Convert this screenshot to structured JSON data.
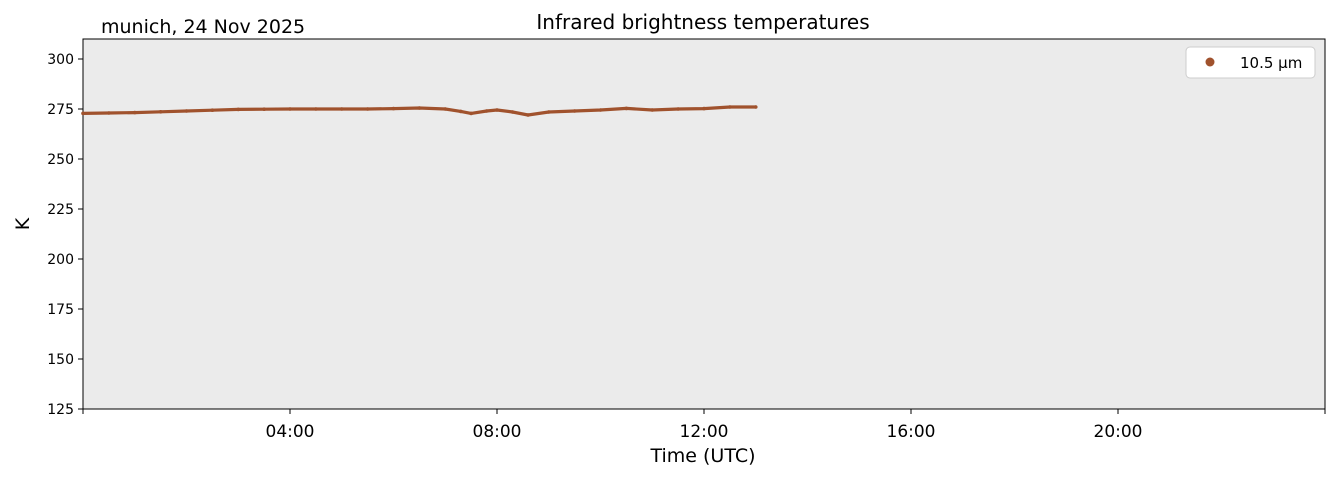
{
  "chart_data": {
    "type": "line",
    "title": "Infrared brightness temperatures",
    "subtitle": "munich, 24 Nov 2025",
    "xlabel": "Time (UTC)",
    "ylabel": "K",
    "xlim_hours": [
      0,
      24
    ],
    "ylim": [
      125,
      310
    ],
    "yticks": [
      125,
      150,
      175,
      200,
      225,
      250,
      275,
      300
    ],
    "xticks": [
      {
        "hour": 4,
        "label": "04:00"
      },
      {
        "hour": 8,
        "label": "08:00"
      },
      {
        "hour": 12,
        "label": "12:00"
      },
      {
        "hour": 16,
        "label": "16:00"
      },
      {
        "hour": 20,
        "label": "20:00"
      }
    ],
    "grid": false,
    "legend_position": "top-right",
    "series": [
      {
        "name": "10.5 µm",
        "color": "#a0522d",
        "marker": "dot",
        "x_hours": [
          0.0,
          0.5,
          1.0,
          1.5,
          2.0,
          2.5,
          3.0,
          3.5,
          4.0,
          4.5,
          5.0,
          5.5,
          6.0,
          6.5,
          7.0,
          7.3,
          7.5,
          7.8,
          8.0,
          8.3,
          8.6,
          9.0,
          9.5,
          10.0,
          10.5,
          11.0,
          11.5,
          12.0,
          12.5,
          13.0
        ],
        "values": [
          272.8,
          273.0,
          273.2,
          273.6,
          274.0,
          274.4,
          274.8,
          274.9,
          275.0,
          275.0,
          275.0,
          275.0,
          275.2,
          275.5,
          275.0,
          273.8,
          272.8,
          274.0,
          274.5,
          273.5,
          272.0,
          273.5,
          274.0,
          274.5,
          275.3,
          274.5,
          275.0,
          275.2,
          276.0,
          276.0
        ]
      }
    ]
  }
}
